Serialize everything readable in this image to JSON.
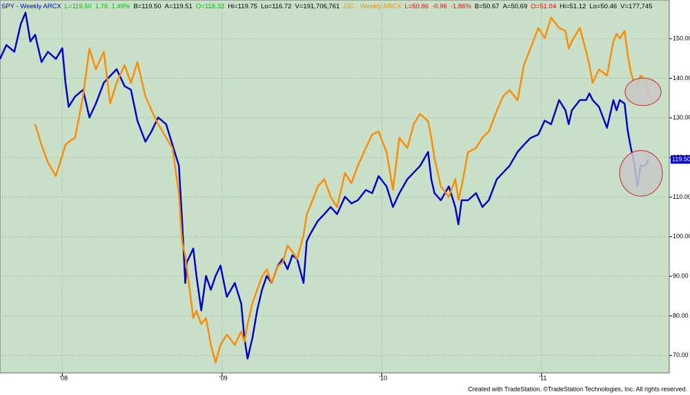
{
  "chart_data": {
    "type": "line",
    "x": [
      2007.61,
      2007.65,
      2007.7,
      2007.74,
      2007.77,
      2007.8,
      2007.83,
      2007.87,
      2007.91,
      2007.96,
      2008.0,
      2008.02,
      2008.04,
      2008.08,
      2008.13,
      2008.17,
      2008.21,
      2008.26,
      2008.3,
      2008.34,
      2008.39,
      2008.43,
      2008.47,
      2008.52,
      2008.56,
      2008.6,
      2008.65,
      2008.69,
      2008.73,
      2008.75,
      2008.77,
      2008.78,
      2008.82,
      2008.84,
      2008.87,
      2008.9,
      2008.93,
      2008.96,
      2008.99,
      2009.03,
      2009.08,
      2009.12,
      2009.14,
      2009.16,
      2009.19,
      2009.22,
      2009.25,
      2009.28,
      2009.31,
      2009.35,
      2009.38,
      2009.41,
      2009.44,
      2009.47,
      2009.51,
      2009.53,
      2009.55,
      2009.6,
      2009.64,
      2009.68,
      2009.72,
      2009.77,
      2009.81,
      2009.85,
      2009.9,
      2009.94,
      2009.98,
      2010.03,
      2010.07,
      2010.11,
      2010.16,
      2010.2,
      2010.24,
      2010.29,
      2010.31,
      2010.33,
      2010.37,
      2010.42,
      2010.46,
      2010.48,
      2010.5,
      2010.54,
      2010.59,
      2010.63,
      2010.67,
      2010.72,
      2010.76,
      2010.8,
      2010.85,
      2010.89,
      2010.93,
      2010.98,
      2011.02,
      2011.06,
      2011.11,
      2011.15,
      2011.17,
      2011.19,
      2011.24,
      2011.28,
      2011.3,
      2011.32,
      2011.36,
      2011.41,
      2011.45,
      2011.47,
      2011.49,
      2011.52,
      2011.54,
      2011.56,
      2011.58,
      2011.6,
      2011.62,
      2011.65,
      2011.67
    ],
    "series": [
      {
        "name": "SPY - Weekly",
        "color": "#0000cc",
        "info": [
          {
            "text": "SPY - Weekly  ARCX",
            "color": "#0000cc"
          },
          {
            "text": "L=119.50",
            "color": "#00c000"
          },
          {
            "text": "1.76",
            "color": "#00c000"
          },
          {
            "text": "1.49%",
            "color": "#00c000"
          },
          {
            "text": "B=119.50",
            "color": "#000000"
          },
          {
            "text": "A=119.51",
            "color": "#000000"
          },
          {
            "text": "O=118.33",
            "color": "#00c000"
          },
          {
            "text": "Hi=119.75",
            "color": "#000000"
          },
          {
            "text": "Lo=116.72",
            "color": "#000000"
          },
          {
            "text": "V=191,706,761",
            "color": "#000000"
          }
        ],
        "last_value_label": "119.50",
        "values": [
          144.9,
          148.4,
          146.7,
          153.7,
          156.6,
          149.3,
          151.0,
          144.1,
          146.7,
          144.9,
          147.6,
          138.9,
          132.8,
          135.4,
          137.1,
          130.1,
          133.6,
          138.9,
          140.6,
          142.3,
          138.0,
          137.1,
          129.3,
          124.0,
          126.7,
          130.1,
          128.4,
          123.2,
          117.9,
          104.0,
          88.3,
          93.6,
          97.0,
          90.1,
          81.4,
          90.1,
          86.6,
          90.1,
          92.7,
          84.8,
          88.3,
          83.1,
          74.4,
          69.2,
          74.4,
          81.4,
          86.6,
          90.1,
          88.3,
          92.7,
          94.4,
          91.8,
          95.3,
          94.4,
          88.3,
          98.8,
          100.5,
          104.0,
          105.7,
          107.5,
          105.7,
          110.1,
          108.4,
          109.2,
          111.8,
          111.0,
          115.3,
          112.7,
          107.5,
          111.0,
          114.5,
          116.2,
          117.9,
          121.4,
          114.5,
          111.0,
          109.2,
          112.7,
          107.5,
          103.1,
          109.2,
          109.2,
          111.0,
          107.5,
          109.2,
          114.5,
          116.2,
          117.9,
          121.4,
          123.2,
          124.9,
          125.8,
          129.3,
          128.4,
          134.5,
          131.9,
          128.4,
          131.9,
          134.5,
          134.5,
          136.2,
          134.5,
          132.8,
          127.5,
          134.5,
          131.9,
          134.5,
          133.6,
          126.7,
          122.3,
          118.8,
          112.7,
          117.9,
          117.9,
          119.5
        ]
      },
      {
        "name": "JJC - Weekly",
        "color": "#ff8c00",
        "axis": "y2",
        "info": [
          {
            "text": "JJC - Weekly  ARCX",
            "color": "#ff8c00"
          },
          {
            "text": "L=50.66",
            "color": "#ff0000"
          },
          {
            "text": "-0.96",
            "color": "#ff0000"
          },
          {
            "text": "-1.86%",
            "color": "#ff0000"
          },
          {
            "text": "B=50.67",
            "color": "#000000"
          },
          {
            "text": "A=50.69",
            "color": "#000000"
          },
          {
            "text": "O=51.04",
            "color": "#ff0000"
          },
          {
            "text": "Hi=51.12",
            "color": "#000000"
          },
          {
            "text": "Lo=50.46",
            "color": "#000000"
          },
          {
            "text": "V=177,745",
            "color": "#000000"
          }
        ],
        "values": [
          null,
          null,
          null,
          null,
          null,
          null,
          48.0,
          46.0,
          44.3,
          43.0,
          45.0,
          46.0,
          46.3,
          46.7,
          50.7,
          55.3,
          53.3,
          55.0,
          50.0,
          52.0,
          53.7,
          52.0,
          54.0,
          50.7,
          49.3,
          48.0,
          46.7,
          45.7,
          41.3,
          36.7,
          35.3,
          34.0,
          29.3,
          30.0,
          28.7,
          29.3,
          26.7,
          25.0,
          26.7,
          27.7,
          26.7,
          28.0,
          27.0,
          28.7,
          30.7,
          32.0,
          33.3,
          34.0,
          32.7,
          34.3,
          34.7,
          36.3,
          35.7,
          35.0,
          37.3,
          39.3,
          40.0,
          42.0,
          42.7,
          41.0,
          40.0,
          43.3,
          42.3,
          44.0,
          45.7,
          47.0,
          47.3,
          45.3,
          41.7,
          46.7,
          45.7,
          48.0,
          49.0,
          48.3,
          46.7,
          44.7,
          42.0,
          41.0,
          42.7,
          40.7,
          42.0,
          45.3,
          45.7,
          46.7,
          47.3,
          49.3,
          50.7,
          51.3,
          50.3,
          53.7,
          55.3,
          57.3,
          56.3,
          58.3,
          57.3,
          57.0,
          55.3,
          56.0,
          57.3,
          55.0,
          53.7,
          52.0,
          53.3,
          52.7,
          56.0,
          56.7,
          56.3,
          57.0,
          54.7,
          53.0,
          52.0,
          51.7,
          52.7,
          52.3,
          50.66
        ]
      }
    ],
    "xlim": [
      2007.61,
      2011.8
    ],
    "xticks": [
      {
        "value": 2008,
        "label": "'08"
      },
      {
        "value": 2009,
        "label": "'09"
      },
      {
        "value": 2010,
        "label": "'10"
      },
      {
        "value": 2011,
        "label": "'11"
      }
    ],
    "ylim": [
      65.6,
      158.9
    ],
    "yticks": [
      {
        "value": 70,
        "label": "70.00"
      },
      {
        "value": 80,
        "label": "80.00"
      },
      {
        "value": 90,
        "label": "90.00"
      },
      {
        "value": 100,
        "label": "100.00"
      },
      {
        "value": 110,
        "label": "110.00"
      },
      {
        "value": 120,
        "label": "120.00"
      },
      {
        "value": 130,
        "label": "130.00"
      },
      {
        "value": 140,
        "label": "140.00"
      },
      {
        "value": 150,
        "label": "150.00"
      }
    ],
    "y2lim": [
      24.0,
      59.66
    ],
    "grid": true,
    "background": "#c8e0c8",
    "credit": "Created with TradeStation. ©TradeStation Technologies, Inc. All rights reserved."
  }
}
